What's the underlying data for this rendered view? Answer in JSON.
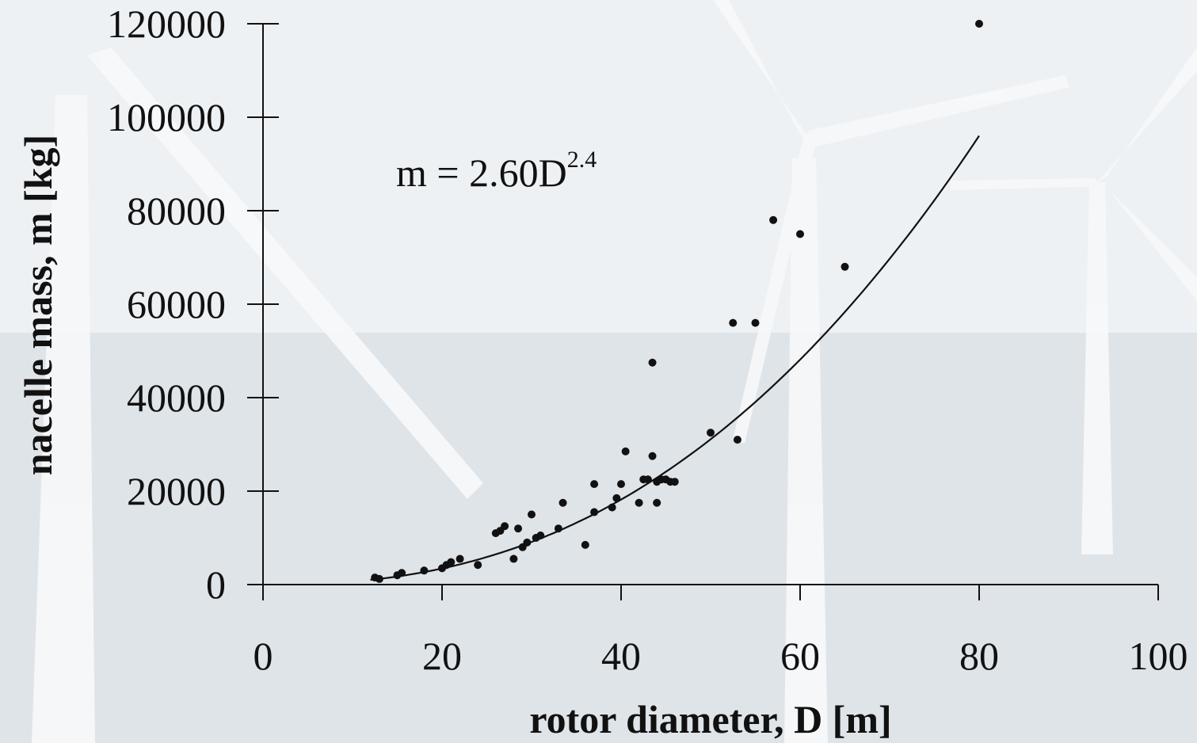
{
  "chart_data": {
    "type": "scatter",
    "title": "",
    "xlabel": "rotor diameter, D [m]",
    "ylabel": "nacelle mass, m [kg]",
    "xlim": [
      0,
      100
    ],
    "ylim": [
      0,
      120000
    ],
    "x_ticks": [
      0,
      20,
      40,
      60,
      80,
      100
    ],
    "y_ticks": [
      0,
      20000,
      40000,
      60000,
      80000,
      100000,
      120000
    ],
    "grid": false,
    "legend": "none",
    "annotation": {
      "base": "m = 2.60D",
      "exponent": "2.4"
    },
    "fit": {
      "type": "power",
      "coefficient": 2.6,
      "exponent": 2.4,
      "x_range": [
        12,
        80
      ]
    },
    "series": [
      {
        "points": [
          [
            12.5,
            1500
          ],
          [
            13,
            1200
          ],
          [
            15,
            2000
          ],
          [
            15.5,
            2500
          ],
          [
            18,
            3000
          ],
          [
            20,
            3500
          ],
          [
            20.5,
            4200
          ],
          [
            21,
            4800
          ],
          [
            22,
            5500
          ],
          [
            24,
            4200
          ],
          [
            26,
            11000
          ],
          [
            26.5,
            11500
          ],
          [
            27,
            12500
          ],
          [
            28,
            5500
          ],
          [
            28.5,
            12000
          ],
          [
            29,
            8000
          ],
          [
            29.5,
            9000
          ],
          [
            30,
            15000
          ],
          [
            30.5,
            10000
          ],
          [
            31,
            10500
          ],
          [
            33,
            12000
          ],
          [
            33.5,
            17500
          ],
          [
            36,
            8500
          ],
          [
            37,
            15500
          ],
          [
            37,
            21500
          ],
          [
            39,
            16500
          ],
          [
            39.5,
            18500
          ],
          [
            40,
            21500
          ],
          [
            40.5,
            28500
          ],
          [
            42,
            17500
          ],
          [
            42.5,
            22500
          ],
          [
            43,
            22500
          ],
          [
            43.5,
            27500
          ],
          [
            43.5,
            47500
          ],
          [
            44,
            22000
          ],
          [
            44,
            17500
          ],
          [
            44.5,
            22500
          ],
          [
            45,
            22500
          ],
          [
            45.5,
            22000
          ],
          [
            46,
            22000
          ],
          [
            50,
            32500
          ],
          [
            52.5,
            56000
          ],
          [
            53,
            31000
          ],
          [
            55,
            56000
          ],
          [
            57,
            78000
          ],
          [
            60,
            75000
          ],
          [
            65,
            68000
          ],
          [
            80,
            120000
          ]
        ]
      }
    ]
  },
  "colors": {
    "background": "#e6eaee",
    "ink": "#111111"
  }
}
